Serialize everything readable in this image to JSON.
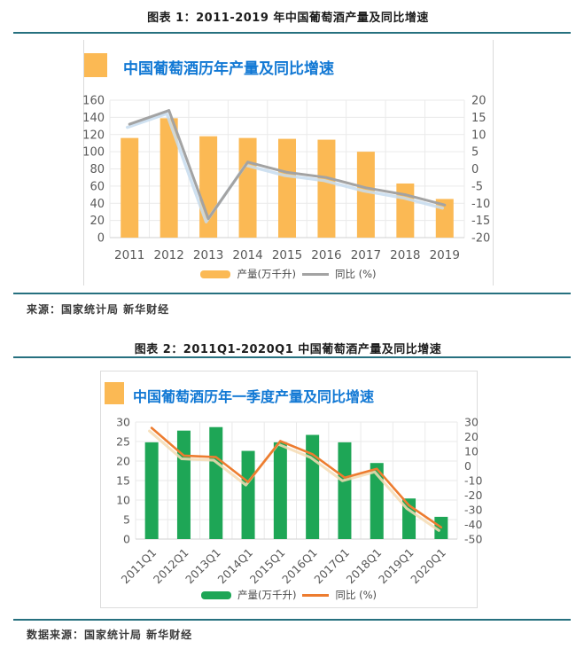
{
  "page": {
    "figure1_caption": "图表 1：2011-2019 年中国葡萄酒产量及同比增速",
    "figure1_source": "来源：国家统计局  新华财经",
    "figure2_caption": "图表 2：2011Q1-2020Q1 中国葡萄酒产量及同比增速",
    "figure2_source": "数据来源：国家统计局  新华财经"
  },
  "colors": {
    "divider": "#26707F",
    "chart_title_blue": "#1178D4",
    "header_square_orange": "#FBB954",
    "bar_orange": "#FBB954",
    "line_gray": "#A3A3A3",
    "line_gray_shadow": "#C7DCEF",
    "bar_green": "#1EA656",
    "line_orange": "#ED7C2F",
    "line_orange_shadow": "#F6DCB4",
    "axis_text": "#595959",
    "gridline": "#EAEAEA",
    "axis_line": "#D2D2D2"
  },
  "chart_data": [
    {
      "type": "bar",
      "title": "中国葡萄酒历年产量及同比增速",
      "categories": [
        "2011",
        "2012",
        "2013",
        "2014",
        "2015",
        "2016",
        "2017",
        "2018",
        "2019"
      ],
      "series": [
        {
          "name": "产量(万千升)",
          "kind": "bar",
          "axis": "left",
          "values": [
            116,
            139,
            118,
            116,
            115,
            114,
            100,
            63,
            45
          ]
        },
        {
          "name": "同比 (%)",
          "kind": "line",
          "axis": "right",
          "values": [
            13,
            17,
            -14.5,
            2,
            -1,
            -2.5,
            -5.5,
            -7.5,
            -10.5
          ]
        }
      ],
      "left_axis": {
        "min": 0,
        "max": 160,
        "step": 20
      },
      "right_axis": {
        "min": -20,
        "max": 20,
        "step": 5
      },
      "legend_position": "bottom",
      "grid": true
    },
    {
      "type": "bar",
      "title": "中国葡萄酒历年一季度产量及同比增速",
      "categories": [
        "2011Q1",
        "2012Q1",
        "2013Q1",
        "2014Q1",
        "2015Q1",
        "2016Q1",
        "2017Q1",
        "2018Q1",
        "2019Q1",
        "2020Q1"
      ],
      "series": [
        {
          "name": "产量(万千升)",
          "kind": "bar",
          "axis": "left",
          "values": [
            24.8,
            27.8,
            28.7,
            22.6,
            24.8,
            26.7,
            24.8,
            19.5,
            10.4,
            5.7
          ]
        },
        {
          "name": "同比 (%)",
          "kind": "line",
          "axis": "right",
          "values": [
            26,
            7,
            6,
            -11,
            17,
            8,
            -8,
            -2,
            -27,
            -42
          ]
        }
      ],
      "left_axis": {
        "min": 0,
        "max": 30,
        "step": 5
      },
      "right_axis": {
        "min": -50,
        "max": 30,
        "step": 10
      },
      "legend_position": "bottom",
      "grid": true
    }
  ]
}
